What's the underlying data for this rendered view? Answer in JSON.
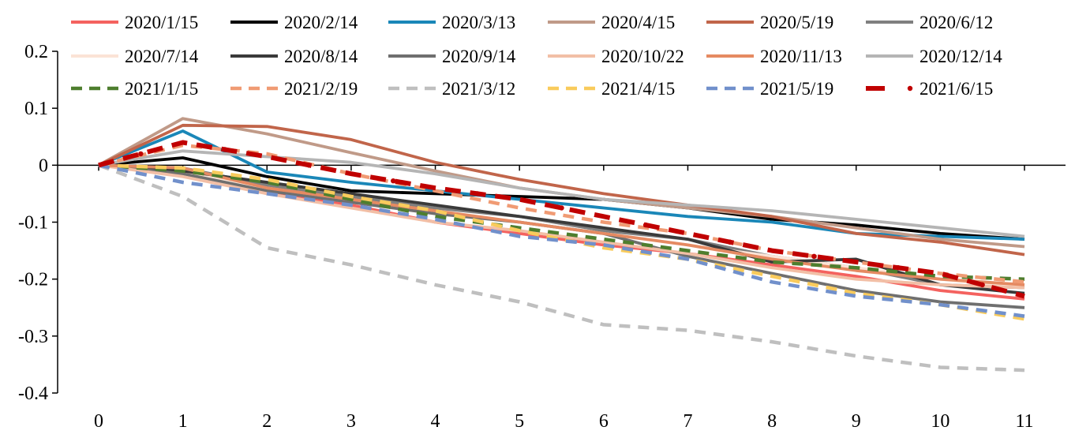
{
  "chart_data": {
    "type": "line",
    "title": "",
    "xlabel": "",
    "ylabel": "",
    "x": [
      0,
      1,
      2,
      3,
      4,
      5,
      6,
      7,
      8,
      9,
      10,
      11
    ],
    "xlim": [
      0,
      11
    ],
    "ylim": [
      -0.4,
      0.2
    ],
    "yticks": [
      "0.2",
      "0.1",
      "0",
      "-0.1",
      "-0.2",
      "-0.3",
      "-0.4"
    ],
    "xticks": [
      "0",
      "1",
      "2",
      "3",
      "4",
      "5",
      "6",
      "7",
      "8",
      "9",
      "10",
      "11"
    ],
    "grid": false,
    "legend_position": "top",
    "series": [
      {
        "name": "2020/1/15",
        "color": "#F4625F",
        "dash": "solid",
        "values": [
          0,
          -0.01,
          -0.05,
          -0.07,
          -0.1,
          -0.12,
          -0.14,
          -0.155,
          -0.175,
          -0.195,
          -0.22,
          -0.235
        ]
      },
      {
        "name": "2020/2/14",
        "color": "#000000",
        "dash": "solid",
        "values": [
          0,
          0.013,
          -0.02,
          -0.045,
          -0.05,
          -0.055,
          -0.06,
          -0.075,
          -0.095,
          -0.105,
          -0.12,
          -0.13
        ]
      },
      {
        "name": "2020/3/13",
        "color": "#1A87B8",
        "dash": "solid",
        "values": [
          0,
          0.06,
          -0.012,
          -0.03,
          -0.045,
          -0.06,
          -0.075,
          -0.09,
          -0.1,
          -0.12,
          -0.125,
          -0.13
        ]
      },
      {
        "name": "2020/4/15",
        "color": "#C09A88",
        "dash": "solid",
        "values": [
          0,
          0.082,
          0.055,
          0.022,
          -0.01,
          -0.04,
          -0.06,
          -0.075,
          -0.09,
          -0.11,
          -0.13,
          -0.143
        ]
      },
      {
        "name": "2020/5/19",
        "color": "#C1654A",
        "dash": "solid",
        "values": [
          0,
          0.07,
          0.068,
          0.045,
          0.005,
          -0.025,
          -0.05,
          -0.07,
          -0.09,
          -0.12,
          -0.135,
          -0.157
        ]
      },
      {
        "name": "2020/6/12",
        "color": "#7F7F7F",
        "dash": "solid",
        "values": [
          0,
          -0.005,
          -0.035,
          -0.055,
          -0.075,
          -0.09,
          -0.115,
          -0.13,
          -0.16,
          -0.18,
          -0.21,
          -0.215
        ]
      },
      {
        "name": "2020/7/14",
        "color": "#FBE3D6",
        "dash": "solid",
        "values": [
          0,
          -0.01,
          -0.04,
          -0.065,
          -0.085,
          -0.1,
          -0.12,
          -0.14,
          -0.16,
          -0.18,
          -0.2,
          -0.215
        ]
      },
      {
        "name": "2020/8/14",
        "color": "#3A3A3A",
        "dash": "solid",
        "values": [
          0,
          -0.01,
          -0.03,
          -0.05,
          -0.07,
          -0.09,
          -0.11,
          -0.13,
          -0.17,
          -0.165,
          -0.21,
          -0.225
        ]
      },
      {
        "name": "2020/9/14",
        "color": "#6F6F6F",
        "dash": "solid",
        "values": [
          0,
          -0.015,
          -0.045,
          -0.065,
          -0.085,
          -0.1,
          -0.12,
          -0.16,
          -0.19,
          -0.22,
          -0.24,
          -0.25
        ]
      },
      {
        "name": "2020/10/22",
        "color": "#F2BFA6",
        "dash": "solid",
        "values": [
          0,
          -0.02,
          -0.05,
          -0.075,
          -0.1,
          -0.115,
          -0.135,
          -0.155,
          -0.18,
          -0.2,
          -0.21,
          -0.215
        ]
      },
      {
        "name": "2020/11/13",
        "color": "#E58A62",
        "dash": "solid",
        "values": [
          0,
          -0.005,
          -0.04,
          -0.06,
          -0.08,
          -0.1,
          -0.12,
          -0.14,
          -0.165,
          -0.185,
          -0.2,
          -0.21
        ]
      },
      {
        "name": "2020/12/14",
        "color": "#B5B5B5",
        "dash": "solid",
        "values": [
          0,
          0.025,
          0.015,
          0.005,
          -0.015,
          -0.04,
          -0.06,
          -0.07,
          -0.08,
          -0.095,
          -0.11,
          -0.125
        ]
      },
      {
        "name": "2021/1/15",
        "color": "#4E7E2E",
        "dash": "dash",
        "values": [
          0,
          -0.01,
          -0.03,
          -0.06,
          -0.09,
          -0.11,
          -0.13,
          -0.15,
          -0.17,
          -0.18,
          -0.195,
          -0.2
        ]
      },
      {
        "name": "2021/2/19",
        "color": "#F09B74",
        "dash": "dash",
        "values": [
          0,
          0.035,
          0.02,
          -0.015,
          -0.045,
          -0.075,
          -0.1,
          -0.12,
          -0.15,
          -0.17,
          -0.19,
          -0.205
        ]
      },
      {
        "name": "2021/3/12",
        "color": "#BFBFBF",
        "dash": "dash",
        "values": [
          0,
          -0.055,
          -0.145,
          -0.175,
          -0.21,
          -0.24,
          -0.28,
          -0.29,
          -0.31,
          -0.335,
          -0.355,
          -0.36
        ]
      },
      {
        "name": "2021/4/15",
        "color": "#F9CB5C",
        "dash": "dash",
        "values": [
          0,
          -0.005,
          -0.025,
          -0.055,
          -0.08,
          -0.115,
          -0.145,
          -0.165,
          -0.195,
          -0.225,
          -0.245,
          -0.27
        ]
      },
      {
        "name": "2021/5/19",
        "color": "#7190CB",
        "dash": "dash",
        "values": [
          0,
          -0.03,
          -0.05,
          -0.07,
          -0.095,
          -0.125,
          -0.14,
          -0.165,
          -0.205,
          -0.23,
          -0.245,
          -0.265
        ]
      },
      {
        "name": "2021/6/15",
        "color": "#C00000",
        "dash": "dashdot",
        "values": [
          0,
          0.04,
          0.015,
          -0.015,
          -0.04,
          -0.06,
          -0.09,
          -0.12,
          -0.15,
          -0.17,
          -0.19,
          -0.23
        ]
      }
    ]
  }
}
